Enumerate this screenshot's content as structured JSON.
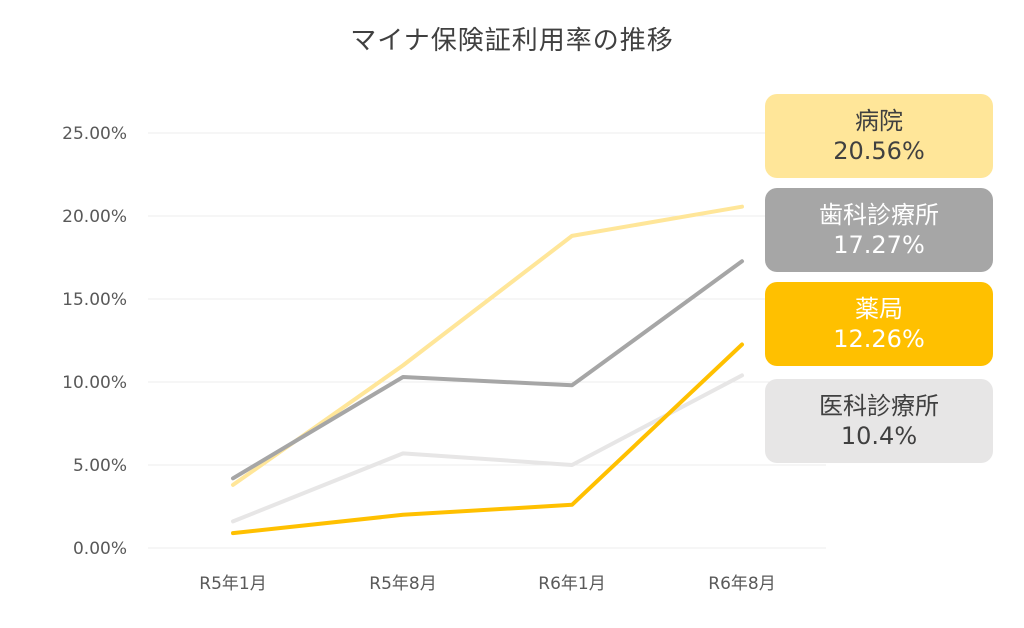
{
  "chart_data": {
    "type": "line",
    "title": "マイナ保険証利用率の推移",
    "categories": [
      "R5年1月",
      "R5年8月",
      "R6年1月",
      "R6年8月"
    ],
    "y_ticks": [
      "0.00%",
      "5.00%",
      "10.00%",
      "15.00%",
      "20.00%",
      "25.00%"
    ],
    "ylim": [
      0,
      25
    ],
    "grid": true,
    "legend": "right (callout boxes)",
    "series": [
      {
        "name": "病院",
        "values": [
          3.8,
          11.0,
          18.8,
          20.56
        ],
        "color": "#FFE699"
      },
      {
        "name": "歯科診療所",
        "values": [
          4.2,
          10.3,
          9.8,
          17.27
        ],
        "color": "#A6A6A6"
      },
      {
        "name": "薬局",
        "values": [
          0.9,
          2.0,
          2.6,
          12.26
        ],
        "color": "#FFC000"
      },
      {
        "name": "医科診療所",
        "values": [
          1.6,
          5.7,
          5.0,
          10.4
        ],
        "color": "#E7E6E6"
      }
    ]
  },
  "callouts": [
    {
      "name": "病院",
      "value": "20.56%",
      "bg": "#FFE699",
      "fg": "#404040"
    },
    {
      "name": "歯科診療所",
      "value": "17.27%",
      "bg": "#A6A6A6",
      "fg": "#ffffff"
    },
    {
      "name": "薬局",
      "value": "12.26%",
      "bg": "#FFC000",
      "fg": "#ffffff"
    },
    {
      "name": "医科診療所",
      "value": "10.4%",
      "bg": "#E7E6E6",
      "fg": "#404040"
    }
  ]
}
